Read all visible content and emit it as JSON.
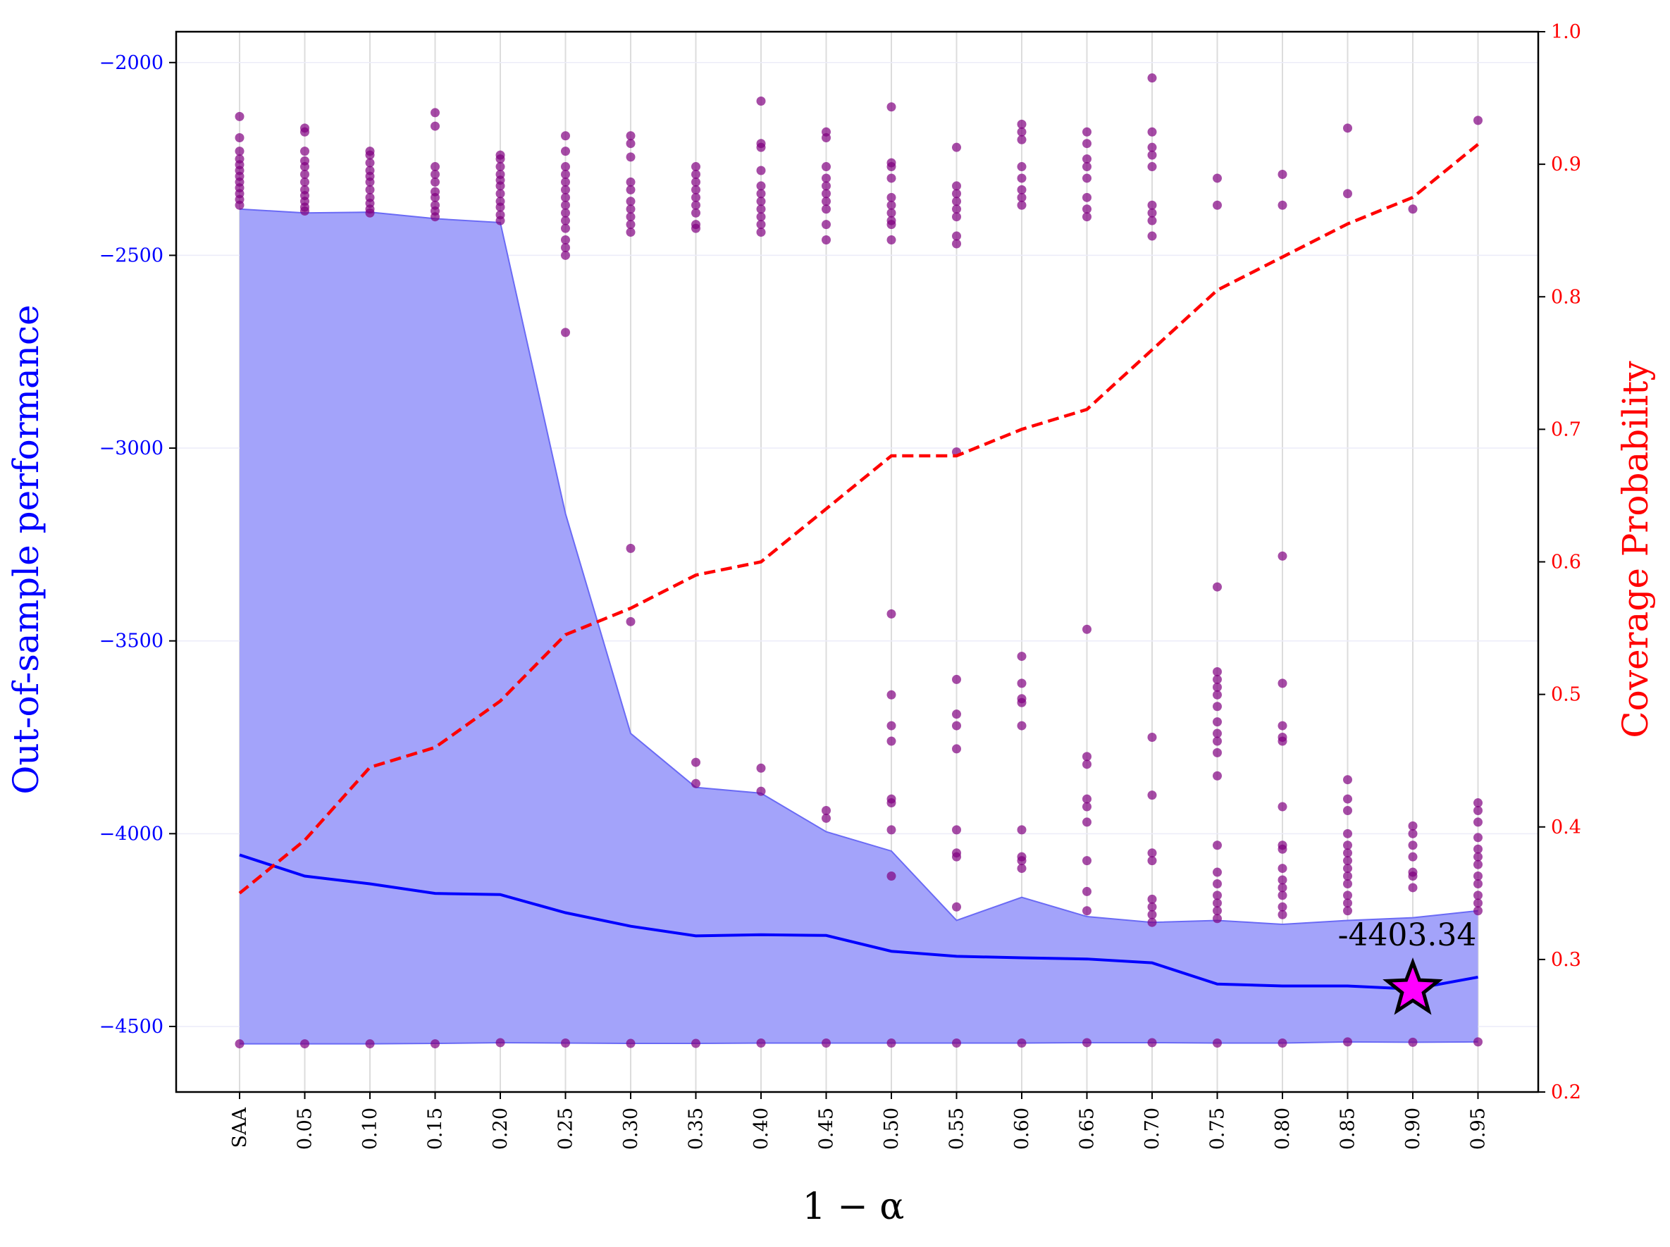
{
  "chart_data": {
    "type": "line",
    "xlabel": "1 − α",
    "ylabel_left": "Out-of-sample performance",
    "ylabel_right": "Coverage Probability",
    "categories": [
      "SAA",
      "0.05",
      "0.10",
      "0.15",
      "0.20",
      "0.25",
      "0.30",
      "0.35",
      "0.40",
      "0.45",
      "0.50",
      "0.55",
      "0.60",
      "0.65",
      "0.70",
      "0.75",
      "0.80",
      "0.85",
      "0.90",
      "0.95"
    ],
    "ylim_left": [
      -4670,
      -1920
    ],
    "yticks_left": [
      -4500,
      -4000,
      -3500,
      -3000,
      -2500,
      -2000
    ],
    "ylim_right": [
      0.2,
      1.0
    ],
    "yticks_right": [
      0.2,
      0.3,
      0.4,
      0.5,
      0.6,
      0.7,
      0.8,
      0.9,
      1.0
    ],
    "grid": true,
    "series": [
      {
        "axis": "left",
        "kind": "line",
        "color": "#0000ff",
        "values": [
          -4055,
          -4110,
          -4130,
          -4155,
          -4158,
          -4205,
          -4240,
          -4265,
          -4262,
          -4264,
          -4305,
          -4318,
          -4322,
          -4325,
          -4335,
          -4390,
          -4395,
          -4395,
          -4403,
          -4372
        ]
      },
      {
        "axis": "left",
        "kind": "band",
        "color": "#a3a3fa",
        "upper": [
          -2380,
          -2390,
          -2388,
          -2405,
          -2415,
          -3170,
          -3740,
          -3880,
          -3895,
          -3995,
          -4045,
          -4225,
          -4165,
          -4215,
          -4230,
          -4225,
          -4235,
          -4225,
          -4218,
          -4200
        ],
        "lower": [
          -4545,
          -4545,
          -4545,
          -4544,
          -4542,
          -4543,
          -4544,
          -4544,
          -4543,
          -4543,
          -4543,
          -4543,
          -4543,
          -4542,
          -4542,
          -4543,
          -4543,
          -4540,
          -4541,
          -4540
        ]
      },
      {
        "axis": "right",
        "kind": "dashed-line",
        "color": "#ff0000",
        "values": [
          0.35,
          0.39,
          0.445,
          0.46,
          0.495,
          0.545,
          0.565,
          0.59,
          0.6,
          0.64,
          0.68,
          0.68,
          0.7,
          0.715,
          0.76,
          0.805,
          0.83,
          0.855,
          0.875,
          0.915
        ]
      }
    ],
    "scatter": {
      "color": "#800080",
      "points": [
        [
          -2140,
          -2195,
          -2230,
          -2250,
          -2265,
          -2280,
          -2295,
          -2310,
          -2325,
          -2340,
          -2355,
          -2370,
          -4545
        ],
        [
          -2170,
          -2180,
          -2230,
          -2255,
          -2270,
          -2290,
          -2310,
          -2330,
          -2345,
          -2360,
          -2375,
          -2385,
          -4545
        ],
        [
          -2230,
          -2240,
          -2260,
          -2280,
          -2295,
          -2310,
          -2330,
          -2350,
          -2365,
          -2380,
          -2390,
          -4545
        ],
        [
          -2130,
          -2165,
          -2270,
          -2290,
          -2310,
          -2335,
          -2350,
          -2370,
          -2385,
          -2400,
          -4545
        ],
        [
          -2240,
          -2250,
          -2270,
          -2290,
          -2305,
          -2320,
          -2340,
          -2360,
          -2375,
          -2395,
          -2410,
          -4542
        ],
        [
          -2190,
          -2230,
          -2270,
          -2290,
          -2310,
          -2330,
          -2350,
          -2370,
          -2390,
          -2410,
          -2430,
          -2460,
          -2480,
          -2500,
          -2700,
          -4543
        ],
        [
          -2190,
          -2210,
          -2245,
          -2310,
          -2330,
          -2360,
          -2380,
          -2400,
          -2420,
          -2440,
          -3260,
          -3450,
          -4544
        ],
        [
          -2270,
          -2290,
          -2310,
          -2330,
          -2350,
          -2370,
          -2390,
          -2420,
          -2430,
          -3815,
          -3870,
          -4544
        ],
        [
          -2100,
          -2210,
          -2220,
          -2280,
          -2320,
          -2340,
          -2360,
          -2380,
          -2400,
          -2420,
          -2440,
          -3830,
          -3890,
          -4543
        ],
        [
          -2180,
          -2195,
          -2270,
          -2300,
          -2320,
          -2340,
          -2360,
          -2380,
          -2420,
          -2460,
          -3940,
          -3960,
          -4543
        ],
        [
          -2115,
          -2260,
          -2270,
          -2300,
          -2350,
          -2370,
          -2390,
          -2410,
          -2420,
          -2460,
          -3430,
          -3640,
          -3720,
          -3760,
          -3910,
          -3920,
          -3990,
          -4110,
          -4543
        ],
        [
          -2220,
          -2320,
          -2340,
          -2360,
          -2380,
          -2400,
          -2450,
          -2470,
          -3010,
          -3600,
          -3690,
          -3720,
          -3780,
          -3990,
          -4050,
          -4060,
          -4190,
          -4543
        ],
        [
          -2160,
          -2180,
          -2200,
          -2270,
          -2300,
          -2330,
          -2350,
          -2370,
          -3540,
          -3610,
          -3650,
          -3660,
          -3720,
          -3990,
          -4060,
          -4070,
          -4090,
          -4543
        ],
        [
          -2180,
          -2210,
          -2250,
          -2270,
          -2300,
          -2350,
          -2380,
          -2400,
          -3470,
          -3800,
          -3820,
          -3910,
          -3930,
          -3970,
          -4070,
          -4150,
          -4200,
          -4542
        ],
        [
          -2040,
          -2180,
          -2220,
          -2240,
          -2270,
          -2370,
          -2390,
          -2410,
          -2450,
          -3750,
          -3900,
          -4050,
          -4070,
          -4170,
          -4190,
          -4210,
          -4230,
          -4542
        ],
        [
          -2300,
          -2370,
          -3360,
          -3580,
          -3600,
          -3620,
          -3640,
          -3670,
          -3710,
          -3740,
          -3760,
          -3790,
          -3850,
          -4030,
          -4100,
          -4130,
          -4160,
          -4180,
          -4200,
          -4220,
          -4543
        ],
        [
          -2290,
          -2370,
          -3280,
          -3610,
          -3720,
          -3750,
          -3760,
          -3930,
          -4030,
          -4040,
          -4090,
          -4120,
          -4140,
          -4160,
          -4190,
          -4210,
          -4543
        ],
        [
          -2170,
          -2340,
          -3860,
          -3910,
          -3940,
          -4000,
          -4030,
          -4050,
          -4070,
          -4090,
          -4110,
          -4130,
          -4160,
          -4180,
          -4200,
          -4540
        ],
        [
          -2380,
          -3980,
          -4000,
          -4030,
          -4060,
          -4100,
          -4110,
          -4140,
          -4541
        ],
        [
          -2150,
          -3920,
          -3940,
          -3970,
          -4010,
          -4040,
          -4060,
          -4080,
          -4110,
          -4130,
          -4160,
          -4180,
          -4200,
          -4540
        ]
      ]
    },
    "annotation": {
      "text": "-4403.34",
      "category": "0.90",
      "value": -4403.34,
      "marker": "star",
      "marker_color": "#ff00ff"
    }
  }
}
